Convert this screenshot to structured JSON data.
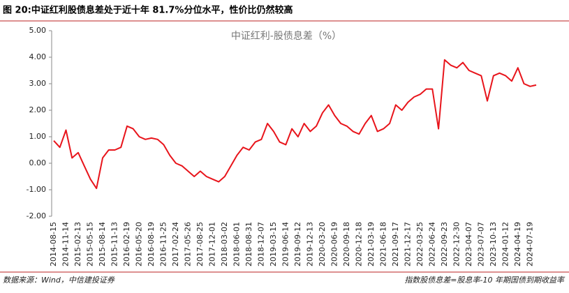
{
  "header": {
    "title": "图 20:中证红利股债息差处于近十年 81.7%分位水平，性价比仍然较高"
  },
  "chart_data": {
    "type": "line",
    "title": "中证红利-股债息差（%）",
    "categories": [
      "2014-08-15",
      null,
      "2014-11-14",
      null,
      "2015-02-13",
      null,
      "2015-05-15",
      null,
      "2015-08-14",
      null,
      "2015-11-13",
      null,
      "2016-02-19",
      null,
      "2016-05-20",
      null,
      "2016-08-19",
      null,
      "2016-11-25",
      null,
      "2017-02-24",
      null,
      "2017-05-26",
      null,
      "2017-08-25",
      null,
      "2017-12-01",
      null,
      "2018-03-02",
      null,
      "2018-06-01",
      null,
      "2018-08-31",
      null,
      "2018-12-07",
      null,
      "2019-03-15",
      null,
      "2019-06-14",
      null,
      "2019-09-12",
      null,
      "2019-12-13",
      null,
      "2020-03-20",
      null,
      "2020-06-19",
      null,
      "2020-09-18",
      null,
      "2020-12-18",
      null,
      "2021-03-19",
      null,
      "2021-06-18",
      null,
      "2021-09-17",
      null,
      "2021-12-17",
      null,
      "2022-03-25",
      null,
      "2022-06-24",
      null,
      "2022-09-23",
      null,
      "2022-12-30",
      null,
      "2023-04-07",
      null,
      "2023-07-07",
      null,
      "2023-10-13",
      null,
      "2024-01-12",
      null,
      "2024-04-19",
      null,
      "2024-07-19",
      null
    ],
    "values": [
      0.85,
      0.6,
      1.25,
      0.2,
      0.4,
      -0.1,
      -0.6,
      -0.95,
      0.2,
      0.5,
      0.5,
      0.6,
      1.4,
      1.3,
      1.0,
      0.9,
      0.95,
      0.9,
      0.7,
      0.3,
      0.0,
      -0.1,
      -0.3,
      -0.5,
      -0.3,
      -0.5,
      -0.6,
      -0.7,
      -0.5,
      -0.1,
      0.3,
      0.6,
      0.5,
      0.8,
      0.9,
      1.5,
      1.2,
      0.8,
      0.7,
      1.3,
      1.0,
      1.5,
      1.2,
      1.4,
      1.9,
      2.2,
      1.8,
      1.5,
      1.4,
      1.2,
      1.1,
      1.5,
      1.8,
      1.2,
      1.3,
      1.5,
      2.2,
      2.0,
      2.3,
      2.5,
      2.6,
      2.8,
      2.8,
      1.3,
      3.9,
      3.7,
      3.6,
      3.8,
      3.5,
      3.4,
      3.3,
      2.35,
      3.3,
      3.4,
      3.3,
      3.1,
      3.6,
      3.0,
      2.9,
      2.95
    ],
    "color": "#e8141b",
    "ylim": [
      -2,
      5
    ],
    "yticks": [
      {
        "value": -2,
        "label": "-2.00"
      },
      {
        "value": -1,
        "label": "-1.00"
      },
      {
        "value": 0,
        "label": "0.00"
      },
      {
        "value": 1,
        "label": "1.00"
      },
      {
        "value": 2,
        "label": "2.00"
      },
      {
        "value": 3,
        "label": "3.00"
      },
      {
        "value": 4,
        "label": "4.00"
      },
      {
        "value": 5,
        "label": "5.00"
      }
    ],
    "grid": false
  },
  "footer": {
    "source": "数据来源：Wind，中信建投证券",
    "note": "指数股债息差=股息率-10 年期国债到期收益率"
  }
}
